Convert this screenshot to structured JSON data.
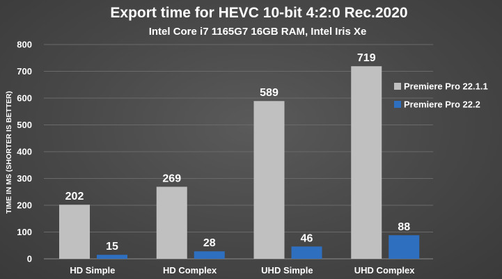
{
  "chart_data": {
    "type": "bar",
    "title": "Export time for HEVC 10-bit 4:2:0 Rec.2020",
    "subtitle": "Intel Core i7 1165G7 16GB RAM, Intel Iris Xe",
    "ylabel": "TIME IN MS (SHORTER IS BETTER)",
    "xlabel": "",
    "ylim": [
      0,
      800
    ],
    "yticks": [
      0,
      100,
      200,
      300,
      400,
      500,
      600,
      700,
      800
    ],
    "grid": true,
    "legend_position": "right",
    "categories": [
      "HD Simple",
      "HD Complex",
      "UHD Simple",
      "UHD Complex"
    ],
    "series": [
      {
        "name": "Premiere Pro 22.1.1",
        "color": "#c0c0c0",
        "values": [
          202,
          269,
          589,
          719
        ]
      },
      {
        "name": "Premiere Pro 22.2",
        "color": "#2f6fbf",
        "values": [
          15,
          28,
          46,
          88
        ]
      }
    ],
    "data_labels": true
  }
}
